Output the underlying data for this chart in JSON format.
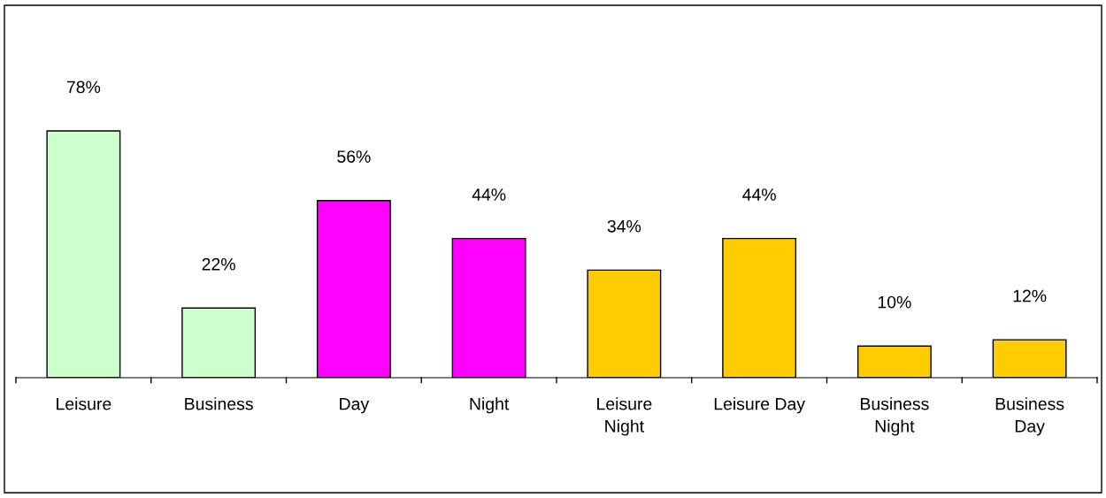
{
  "chart_data": {
    "type": "bar",
    "categories": [
      "Leisure",
      "Business",
      "Day",
      "Night",
      "Leisure\nNight",
      "Leisure Day",
      "Business\nNight",
      "Business\nDay"
    ],
    "values": [
      78,
      22,
      56,
      44,
      34,
      44,
      10,
      12
    ],
    "value_labels": [
      "78%",
      "22%",
      "56%",
      "44%",
      "34%",
      "44%",
      "10%",
      "12%"
    ],
    "colors": [
      "#ccffcc",
      "#ccffcc",
      "#ff00ff",
      "#ff00ff",
      "#ffcc00",
      "#ffcc00",
      "#ffcc00",
      "#ffcc00"
    ],
    "grid": false,
    "legend": false
  }
}
